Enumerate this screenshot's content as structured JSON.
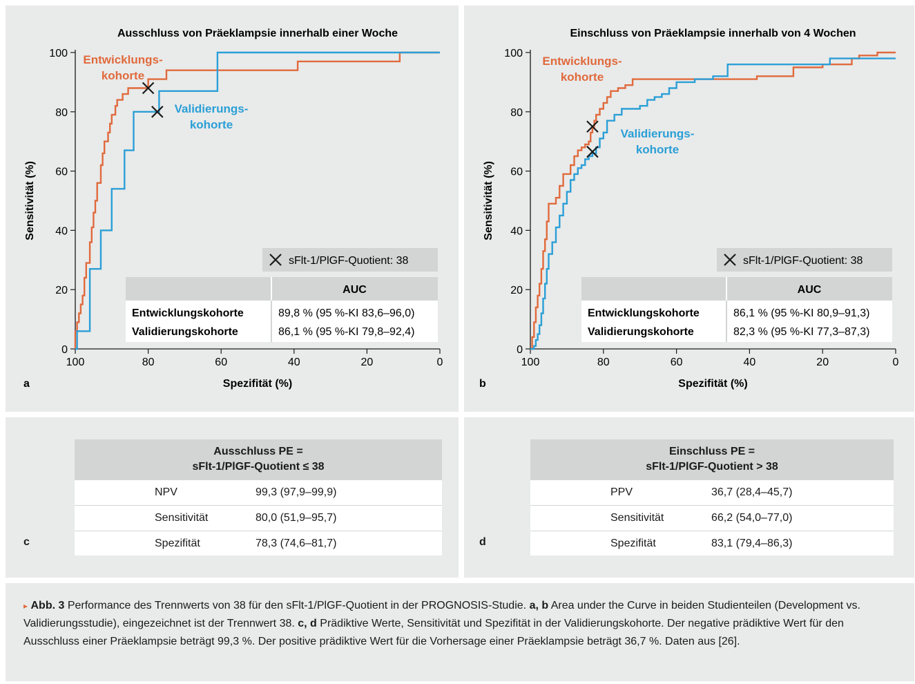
{
  "colors": {
    "dev": "#e06a3c",
    "val": "#2a9fd6",
    "panel_bg": "#e9eaea",
    "table_header": "#d3d4d4"
  },
  "chart_data": [
    {
      "type": "line",
      "panel": "a",
      "title": "Ausschluss von Präeklampsie innerhalb einer Woche",
      "xlabel": "Spezifität (%)",
      "ylabel": "Sensitivität (%)",
      "xlim": [
        100,
        0
      ],
      "ylim": [
        0,
        100
      ],
      "x_ticks": [
        "100",
        "80",
        "60",
        "40",
        "20",
        "0"
      ],
      "y_ticks": [
        "0",
        "20",
        "40",
        "60",
        "80",
        "100"
      ],
      "step": true,
      "series": [
        {
          "name": "Entwicklungs-\nkohorte",
          "color": "#e06a3c",
          "points": [
            [
              100,
              0
            ],
            [
              100,
              6
            ],
            [
              99.5,
              9
            ],
            [
              99,
              12
            ],
            [
              98.5,
              15
            ],
            [
              98,
              18
            ],
            [
              97.5,
              24
            ],
            [
              97,
              29
            ],
            [
              96,
              36
            ],
            [
              95.5,
              41
            ],
            [
              95,
              46
            ],
            [
              94.5,
              50
            ],
            [
              94,
              56
            ],
            [
              93,
              62
            ],
            [
              92.5,
              66
            ],
            [
              92,
              70
            ],
            [
              91,
              73
            ],
            [
              90.5,
              76
            ],
            [
              90,
              79
            ],
            [
              89,
              82
            ],
            [
              88.5,
              84
            ],
            [
              87,
              86
            ],
            [
              85.5,
              88
            ],
            [
              80,
              88
            ],
            [
              80,
              91
            ],
            [
              75,
              91
            ],
            [
              75,
              94
            ],
            [
              39,
              94
            ],
            [
              39,
              97
            ],
            [
              11,
              97
            ],
            [
              11,
              100
            ],
            [
              0,
              100
            ]
          ]
        },
        {
          "name": "Validierungs-\nkohorte",
          "color": "#2a9fd6",
          "points": [
            [
              100,
              0
            ],
            [
              99.5,
              0
            ],
            [
              99.5,
              6
            ],
            [
              96,
              6
            ],
            [
              96,
              27
            ],
            [
              93,
              27
            ],
            [
              93,
              40
            ],
            [
              90,
              40
            ],
            [
              90,
              54
            ],
            [
              86.5,
              54
            ],
            [
              86.5,
              67
            ],
            [
              84,
              67
            ],
            [
              84,
              80
            ],
            [
              77,
              80
            ],
            [
              77,
              87
            ],
            [
              61,
              87
            ],
            [
              61,
              100
            ],
            [
              0,
              100
            ]
          ]
        }
      ],
      "markers": [
        {
          "x": 80,
          "y": 88
        },
        {
          "x": 77.5,
          "y": 80
        }
      ],
      "marker_legend": "sFlt-1/PlGF-Quotient: 38",
      "auc_table": {
        "header": "AUC",
        "rows": [
          {
            "label": "Entwicklungskohorte",
            "value": "89,8 % (95 %-KI 83,6–96,0)"
          },
          {
            "label": "Validierungskohorte",
            "value": "86,1 % (95 %-KI 79,8–92,4)"
          }
        ]
      }
    },
    {
      "type": "line",
      "panel": "b",
      "title": "Einschluss von Präeklampsie innerhalb von 4 Wochen",
      "xlabel": "Spezifität (%)",
      "ylabel": "Sensitivität (%)",
      "xlim": [
        100,
        0
      ],
      "ylim": [
        0,
        100
      ],
      "x_ticks": [
        "100",
        "80",
        "60",
        "40",
        "20",
        "0"
      ],
      "y_ticks": [
        "0",
        "20",
        "40",
        "60",
        "80",
        "100"
      ],
      "step": true,
      "series": [
        {
          "name": "Entwicklungs-\nkohorte",
          "color": "#e06a3c",
          "points": [
            [
              100,
              0
            ],
            [
              99.5,
              4
            ],
            [
              99,
              9
            ],
            [
              98.5,
              14
            ],
            [
              98,
              18
            ],
            [
              97.5,
              22
            ],
            [
              97,
              27
            ],
            [
              96.5,
              33
            ],
            [
              96,
              37
            ],
            [
              95.5,
              43
            ],
            [
              95,
              49
            ],
            [
              93,
              51
            ],
            [
              92,
              55
            ],
            [
              91,
              59
            ],
            [
              89,
              62
            ],
            [
              88,
              65
            ],
            [
              87,
              67
            ],
            [
              86,
              68
            ],
            [
              85,
              69
            ],
            [
              84,
              70
            ],
            [
              83.5,
              73
            ],
            [
              83,
              75
            ],
            [
              82.5,
              77
            ],
            [
              82,
              79
            ],
            [
              81,
              81
            ],
            [
              80,
              83
            ],
            [
              79,
              85
            ],
            [
              78,
              87
            ],
            [
              76,
              88
            ],
            [
              74,
              89
            ],
            [
              72,
              91
            ],
            [
              60,
              91
            ],
            [
              40,
              91
            ],
            [
              38,
              92
            ],
            [
              30,
              92
            ],
            [
              28,
              95
            ],
            [
              20,
              96
            ],
            [
              15,
              96
            ],
            [
              12,
              98
            ],
            [
              10,
              99
            ],
            [
              5,
              100
            ],
            [
              0,
              100
            ]
          ]
        },
        {
          "name": "Validierungs-\nkohorte",
          "color": "#2a9fd6",
          "points": [
            [
              100,
              0
            ],
            [
              99,
              1
            ],
            [
              98.5,
              3
            ],
            [
              98,
              5
            ],
            [
              97.5,
              8
            ],
            [
              97,
              12
            ],
            [
              96.5,
              17
            ],
            [
              96,
              22
            ],
            [
              95.5,
              27
            ],
            [
              95,
              32
            ],
            [
              94,
              36
            ],
            [
              93,
              41
            ],
            [
              92,
              45
            ],
            [
              91,
              49
            ],
            [
              90,
              53
            ],
            [
              89,
              57
            ],
            [
              88,
              59
            ],
            [
              87,
              61
            ],
            [
              86,
              62
            ],
            [
              85,
              64
            ],
            [
              84,
              65
            ],
            [
              83,
              66
            ],
            [
              82,
              68
            ],
            [
              81,
              71
            ],
            [
              80,
              73
            ],
            [
              79,
              77
            ],
            [
              77,
              79
            ],
            [
              75,
              81
            ],
            [
              70,
              82
            ],
            [
              68,
              84
            ],
            [
              66,
              85
            ],
            [
              64,
              86
            ],
            [
              62,
              88
            ],
            [
              60,
              90
            ],
            [
              55,
              91
            ],
            [
              50,
              92
            ],
            [
              46,
              96
            ],
            [
              40,
              96
            ],
            [
              20,
              96
            ],
            [
              18,
              98
            ],
            [
              10,
              98
            ],
            [
              5,
              98
            ],
            [
              0,
              98
            ]
          ]
        }
      ],
      "markers": [
        {
          "x": 83,
          "y": 75
        },
        {
          "x": 83,
          "y": 66.5
        }
      ],
      "marker_legend": "sFlt-1/PlGF-Quotient: 38",
      "auc_table": {
        "header": "AUC",
        "rows": [
          {
            "label": "Entwicklungskohorte",
            "value": "86,1 % (95 %-KI 80,9–91,3)"
          },
          {
            "label": "Validierungskohorte",
            "value": "82,3 % (95 %-KI 77,3–87,3)"
          }
        ]
      }
    },
    {
      "type": "table",
      "panel": "c",
      "header": [
        "Ausschluss PE =",
        "sFlt-1/PlGF-Quotient ≤ 38"
      ],
      "rows": [
        {
          "label": "NPV",
          "value": "99,3 (97,9–99,9)"
        },
        {
          "label": "Sensitivität",
          "value": "80,0 (51,9–95,7)"
        },
        {
          "label": "Spezifität",
          "value": "78,3 (74,6–81,7)"
        }
      ]
    },
    {
      "type": "table",
      "panel": "d",
      "header": [
        "Einschluss PE =",
        "sFlt-1/PlGF-Quotient > 38"
      ],
      "rows": [
        {
          "label": "PPV",
          "value": "36,7 (28,4–45,7)"
        },
        {
          "label": "Sensitivität",
          "value": "66,2 (54,0–77,0)"
        },
        {
          "label": "Spezifität",
          "value": "83,1 (79,4–86,3)"
        }
      ]
    }
  ],
  "caption": {
    "marker": "▸",
    "label": "Abb. 3",
    "text1": "Performance des Trennwerts von 38 für den sFlt-1/PlGF-Quotient in der PROGNOSIS-Studie.",
    "ref1": "a, b",
    "text2": "Area under the Curve in beiden Studi­enteilen (Development vs. Validierungsstudie), eingezeichnet ist der Trennwert 38.",
    "ref2": "c, d",
    "text3": "Prädiktive Werte, Sensitivität und Spezifität in der Validie­rungskohorte. Der negative prädiktive Wert für den Ausschluss einer Präeklampsie beträgt 99,3 %. Der positive prädiktive Wert für die Vorhersage einer Präeklampsie beträgt 36,7 %. Daten aus [26]."
  }
}
